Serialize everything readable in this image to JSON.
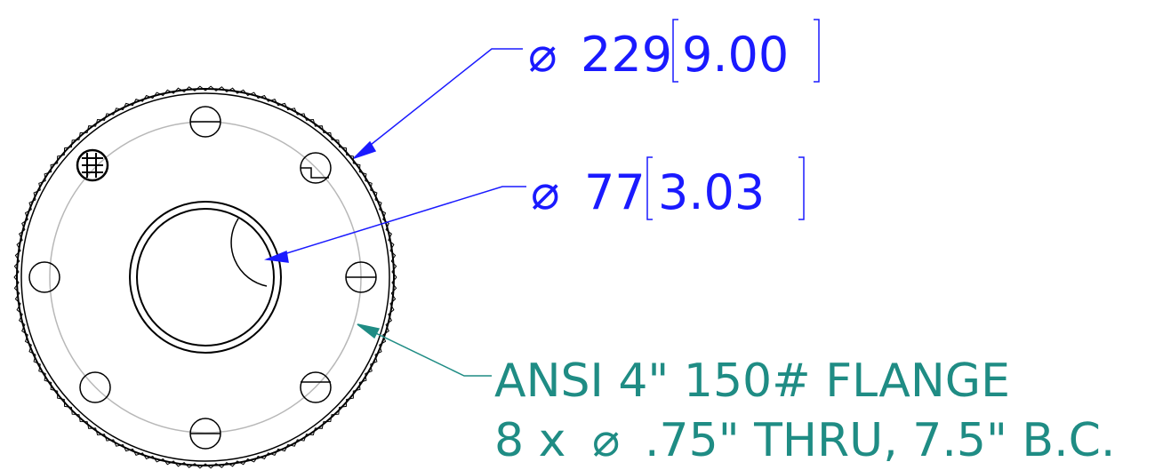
{
  "dimensions": {
    "outer": {
      "symbol": "⌀",
      "value_mm": "229",
      "value_in": "9.00"
    },
    "bore": {
      "symbol": "⌀",
      "value_mm": "77",
      "value_in": "3.03"
    }
  },
  "note": {
    "line1": "ANSI 4\" 150# FLANGE",
    "line2_prefix": "8 x",
    "line2_symbol": "⌀",
    "line2_suffix": ".75\" THRU, 7.5\" B.C."
  },
  "colors": {
    "dimension": "#1a1aff",
    "note": "#1f8c84",
    "part": "#000000",
    "bolt_circle": "#b8b8b8"
  },
  "features": {
    "bolt_hole_count": 8
  }
}
